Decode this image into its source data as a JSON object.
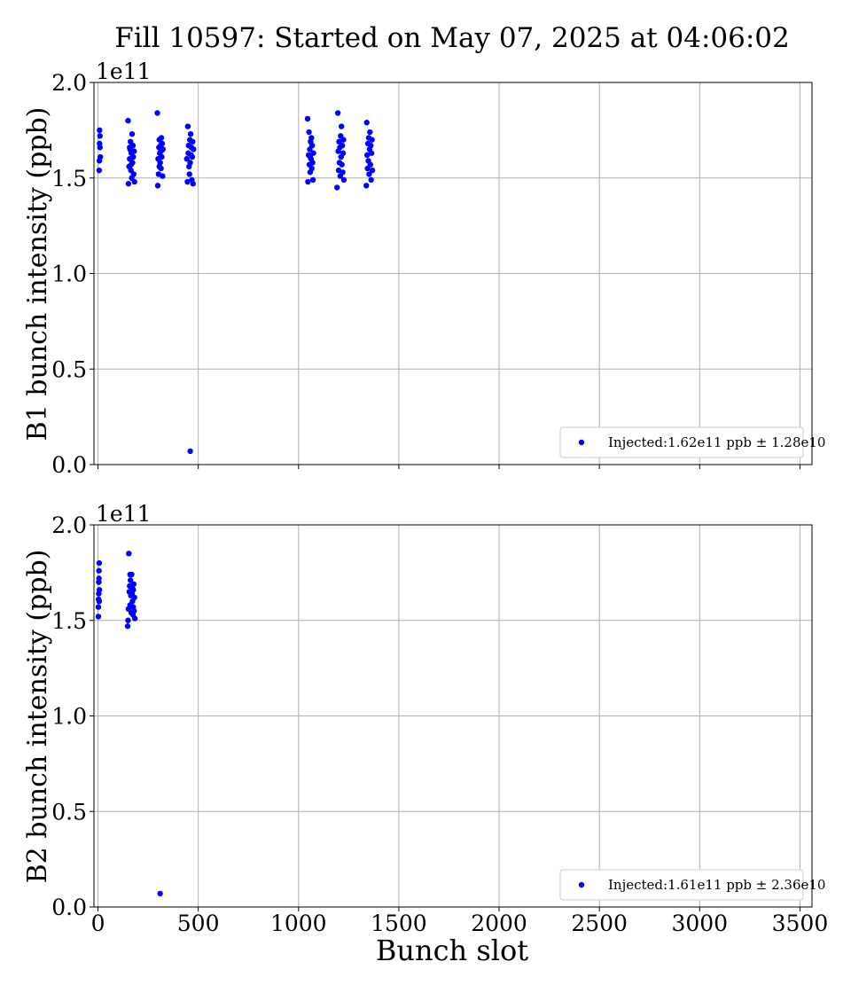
{
  "title": "Fill 10597: Started on May 07, 2025 at 04:06:02",
  "xlabel": "Bunch slot",
  "colors": {
    "points": "#0000ff",
    "grid": "#b0b0b0",
    "axes": "#000000"
  },
  "chart_data": [
    {
      "type": "scatter",
      "ylabel": "B1 bunch intensity (ppb)",
      "exponent_label": "1e11",
      "xlim": [
        -20,
        3560
      ],
      "ylim": [
        0,
        2.0
      ],
      "xticks": [
        "0",
        "500",
        "1000",
        "1500",
        "2000",
        "2500",
        "3000",
        "3500"
      ],
      "yticks": [
        "0.0",
        "0.5",
        "1.0",
        "1.5",
        "2.0"
      ],
      "show_xtick_labels": false,
      "grid": true,
      "legend_position": "lower right",
      "series": [
        {
          "name": "Injected:1.62e11 ppb ± 1.28e10",
          "points": [
            [
              8,
              1.75
            ],
            [
              8,
              1.68
            ],
            [
              10,
              1.72
            ],
            [
              12,
              1.61
            ],
            [
              6,
              1.54
            ],
            [
              10,
              1.66
            ],
            [
              7,
              1.59
            ],
            [
              150,
              1.8
            ],
            [
              152,
              1.47
            ],
            [
              155,
              1.56
            ],
            [
              158,
              1.6
            ],
            [
              160,
              1.65
            ],
            [
              162,
              1.69
            ],
            [
              164,
              1.54
            ],
            [
              166,
              1.63
            ],
            [
              168,
              1.5
            ],
            [
              170,
              1.73
            ],
            [
              172,
              1.58
            ],
            [
              174,
              1.67
            ],
            [
              176,
              1.61
            ],
            [
              178,
              1.52
            ],
            [
              180,
              1.64
            ],
            [
              182,
              1.48
            ],
            [
              158,
              1.66
            ],
            [
              166,
              1.57
            ],
            [
              296,
              1.84
            ],
            [
              298,
              1.46
            ],
            [
              300,
              1.6
            ],
            [
              302,
              1.52
            ],
            [
              304,
              1.66
            ],
            [
              306,
              1.7
            ],
            [
              308,
              1.63
            ],
            [
              310,
              1.58
            ],
            [
              312,
              1.67
            ],
            [
              314,
              1.55
            ],
            [
              316,
              1.71
            ],
            [
              318,
              1.61
            ],
            [
              320,
              1.68
            ],
            [
              322,
              1.51
            ],
            [
              324,
              1.65
            ],
            [
              306,
              1.56
            ],
            [
              314,
              1.64
            ],
            [
              443,
              1.6
            ],
            [
              446,
              1.48
            ],
            [
              448,
              1.77
            ],
            [
              450,
              1.63
            ],
            [
              452,
              1.67
            ],
            [
              454,
              1.56
            ],
            [
              456,
              1.52
            ],
            [
              458,
              1.7
            ],
            [
              460,
              1.58
            ],
            [
              462,
              1.73
            ],
            [
              464,
              1.62
            ],
            [
              466,
              1.66
            ],
            [
              468,
              1.49
            ],
            [
              470,
              1.61
            ],
            [
              472,
              1.69
            ],
            [
              474,
              1.47
            ],
            [
              476,
              1.65
            ],
            [
              460,
              0.07
            ],
            [
              1045,
              1.81
            ],
            [
              1047,
              1.48
            ],
            [
              1050,
              1.62
            ],
            [
              1052,
              1.74
            ],
            [
              1054,
              1.57
            ],
            [
              1056,
              1.65
            ],
            [
              1058,
              1.53
            ],
            [
              1060,
              1.69
            ],
            [
              1062,
              1.6
            ],
            [
              1064,
              1.71
            ],
            [
              1066,
              1.55
            ],
            [
              1068,
              1.67
            ],
            [
              1070,
              1.58
            ],
            [
              1072,
              1.49
            ],
            [
              1074,
              1.63
            ],
            [
              1058,
              1.61
            ],
            [
              1192,
              1.45
            ],
            [
              1196,
              1.84
            ],
            [
              1198,
              1.64
            ],
            [
              1200,
              1.54
            ],
            [
              1202,
              1.69
            ],
            [
              1204,
              1.58
            ],
            [
              1206,
              1.66
            ],
            [
              1208,
              1.51
            ],
            [
              1210,
              1.72
            ],
            [
              1212,
              1.61
            ],
            [
              1214,
              1.77
            ],
            [
              1216,
              1.57
            ],
            [
              1218,
              1.67
            ],
            [
              1220,
              1.53
            ],
            [
              1222,
              1.63
            ],
            [
              1224,
              1.7
            ],
            [
              1226,
              1.49
            ],
            [
              1338,
              1.46
            ],
            [
              1340,
              1.79
            ],
            [
              1342,
              1.62
            ],
            [
              1344,
              1.55
            ],
            [
              1346,
              1.68
            ],
            [
              1348,
              1.59
            ],
            [
              1350,
              1.71
            ],
            [
              1352,
              1.52
            ],
            [
              1354,
              1.65
            ],
            [
              1356,
              1.74
            ],
            [
              1358,
              1.57
            ],
            [
              1360,
              1.67
            ],
            [
              1362,
              1.49
            ],
            [
              1364,
              1.63
            ],
            [
              1366,
              1.7
            ],
            [
              1368,
              1.54
            ]
          ]
        }
      ]
    },
    {
      "type": "scatter",
      "ylabel": "B2 bunch intensity (ppb)",
      "exponent_label": "1e11",
      "xlim": [
        -20,
        3560
      ],
      "ylim": [
        0,
        2.0
      ],
      "xticks": [
        "0",
        "500",
        "1000",
        "1500",
        "2000",
        "2500",
        "3000",
        "3500"
      ],
      "yticks": [
        "0.0",
        "0.5",
        "1.0",
        "1.5",
        "2.0"
      ],
      "show_xtick_labels": true,
      "grid": true,
      "legend_position": "lower right",
      "series": [
        {
          "name": "Injected:1.61e11 ppb ± 2.36e10",
          "points": [
            [
              2,
              1.52
            ],
            [
              2,
              1.57
            ],
            [
              3,
              1.61
            ],
            [
              4,
              1.64
            ],
            [
              5,
              1.72
            ],
            [
              5,
              1.76
            ],
            [
              6,
              1.8
            ],
            [
              6,
              1.6
            ],
            [
              7,
              1.66
            ],
            [
              4,
              1.7
            ],
            [
              148,
              1.47
            ],
            [
              150,
              1.5
            ],
            [
              152,
              1.56
            ],
            [
              154,
              1.85
            ],
            [
              156,
              1.65
            ],
            [
              158,
              1.68
            ],
            [
              160,
              1.58
            ],
            [
              162,
              1.71
            ],
            [
              164,
              1.63
            ],
            [
              166,
              1.54
            ],
            [
              168,
              1.74
            ],
            [
              170,
              1.67
            ],
            [
              172,
              1.6
            ],
            [
              174,
              1.53
            ],
            [
              176,
              1.66
            ],
            [
              178,
              1.69
            ],
            [
              180,
              1.55
            ],
            [
              182,
              1.62
            ],
            [
              184,
              1.51
            ],
            [
              160,
              1.74
            ],
            [
              170,
              1.64
            ],
            [
              176,
              1.57
            ],
            [
              310,
              0.07
            ]
          ]
        }
      ]
    }
  ]
}
